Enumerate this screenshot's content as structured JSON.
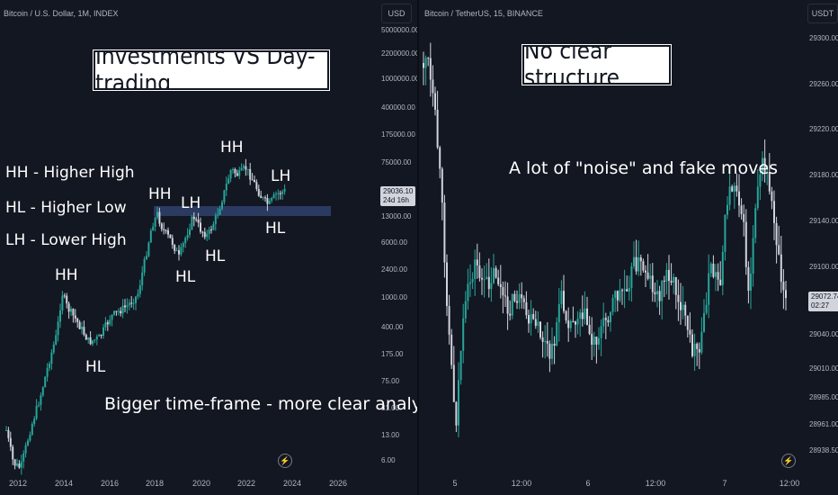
{
  "left": {
    "symbol": "Bitcoin / U.S. Dollar, 1M, INDEX",
    "scale": "USD",
    "title": "Investments VS Day-trading",
    "legend": [
      "HH - Higher High",
      "HL - Higher Low",
      "LH - Lower High"
    ],
    "caption": "Bigger time-frame - more clear analysis",
    "price_label": "29036.10",
    "countdown": "24d 16h",
    "y_ticks": [
      "5000000.00",
      "2200000.00",
      "1000000.00",
      "400000.00",
      "175000.00",
      "75000.00",
      "29036.10",
      "13000.00",
      "6000.00",
      "2400.00",
      "1000.00",
      "400.00",
      "175.00",
      "75.00",
      "31.00",
      "13.00",
      "6.00"
    ],
    "x_ticks": [
      "2012",
      "2014",
      "2016",
      "2018",
      "2020",
      "2022",
      "2024",
      "2026"
    ],
    "labels": {
      "hh1": "HH",
      "hl1": "HL",
      "hh2": "HH",
      "lh1": "LH",
      "hl2": "HL",
      "hl3": "HL",
      "hh3": "HH",
      "lh2": "LH",
      "hl4": "HL"
    },
    "badge": "⚡"
  },
  "right": {
    "symbol": "Bitcoin / TetherUS, 15, BINANCE",
    "scale": "USDT",
    "title": "No clear structure",
    "caption": "A lot of \"noise\" and fake moves",
    "price_label": "29072.74",
    "countdown": "02:27",
    "y_ticks": [
      "29300.00",
      "29260.00",
      "29220.00",
      "29180.00",
      "29140.00",
      "29100.00",
      "29072.74",
      "29040.00",
      "29010.00",
      "28985.00",
      "28961.00",
      "28938.50"
    ],
    "x_ticks": [
      "5",
      "12:00",
      "6",
      "12:00",
      "7",
      "12:00"
    ],
    "badge": "⚡"
  },
  "colors": {
    "up": "#26a69a",
    "down": "#d1d4dc",
    "zone": "#2a3a60",
    "bg": "#131722"
  }
}
